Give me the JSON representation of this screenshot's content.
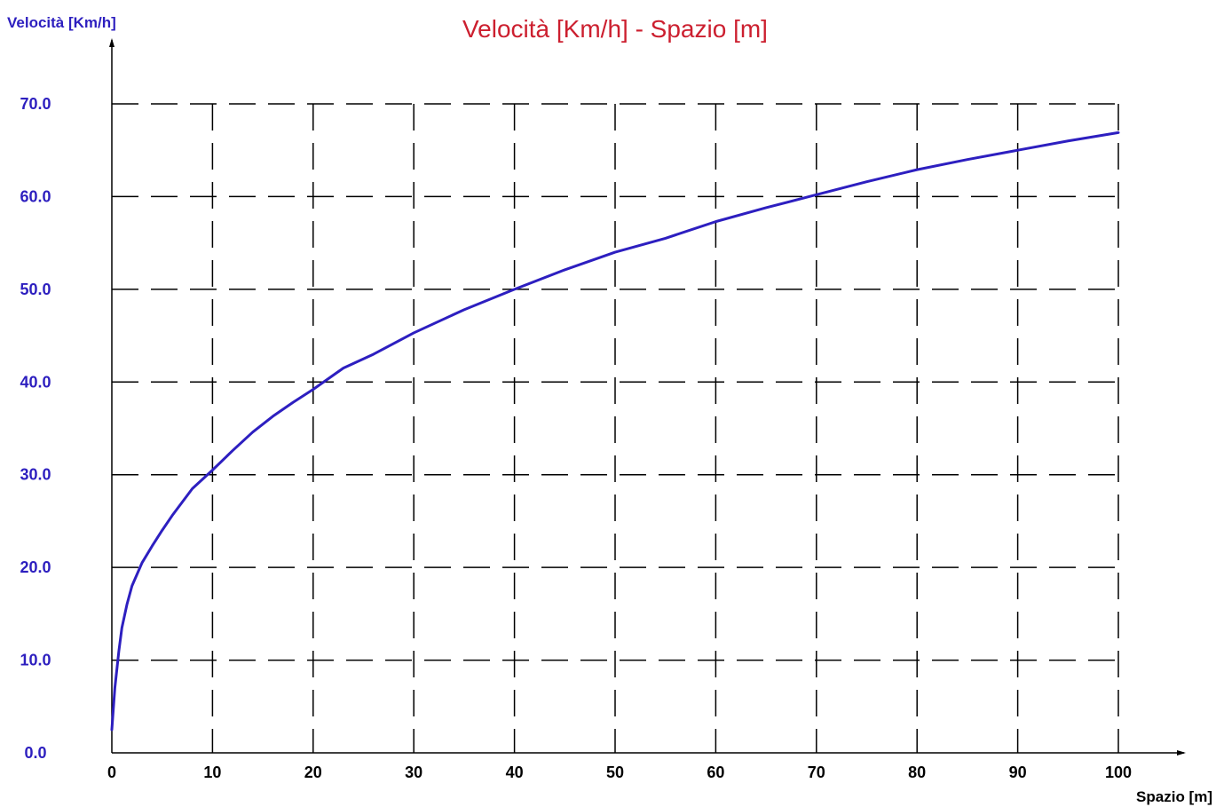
{
  "chart_data": {
    "type": "line",
    "title": "Velocità [Km/h] - Spazio [m]",
    "xlabel": "Spazio [m]",
    "ylabel": "Velocità [Km/h]",
    "xlim": [
      0,
      100
    ],
    "ylim": [
      0,
      70
    ],
    "grid": true,
    "x_ticks": [
      "0",
      "10",
      "20",
      "30",
      "40",
      "50",
      "60",
      "70",
      "80",
      "90",
      "100"
    ],
    "y_ticks": [
      "0.0",
      "10.0",
      "20.0",
      "30.0",
      "40.0",
      "50.0",
      "60.0",
      "70.0"
    ],
    "series": [
      {
        "x": [
          0,
          0.3,
          0.7,
          1,
          1.5,
          2,
          3,
          4,
          5,
          6,
          8,
          10,
          12,
          14,
          16,
          18,
          20,
          23,
          26,
          30,
          35,
          40,
          45,
          50,
          55,
          60,
          65,
          70,
          75,
          80,
          85,
          90,
          95,
          100
        ],
        "y": [
          2.5,
          7.0,
          11.0,
          13.5,
          16.0,
          18.0,
          20.5,
          22.3,
          24.0,
          25.6,
          28.5,
          30.5,
          32.6,
          34.6,
          36.3,
          37.8,
          39.2,
          41.5,
          43.0,
          45.3,
          47.8,
          50.0,
          52.1,
          54.0,
          55.5,
          57.3,
          58.8,
          60.2,
          61.6,
          62.9,
          64.0,
          65.0,
          66.0,
          66.9
        ]
      }
    ],
    "colors": {
      "title": "#cc1f2f",
      "axis_labels": "#2d1fbf",
      "line": "#2d1fc0",
      "grid": "#000000",
      "x_ticks": "#000000"
    }
  }
}
